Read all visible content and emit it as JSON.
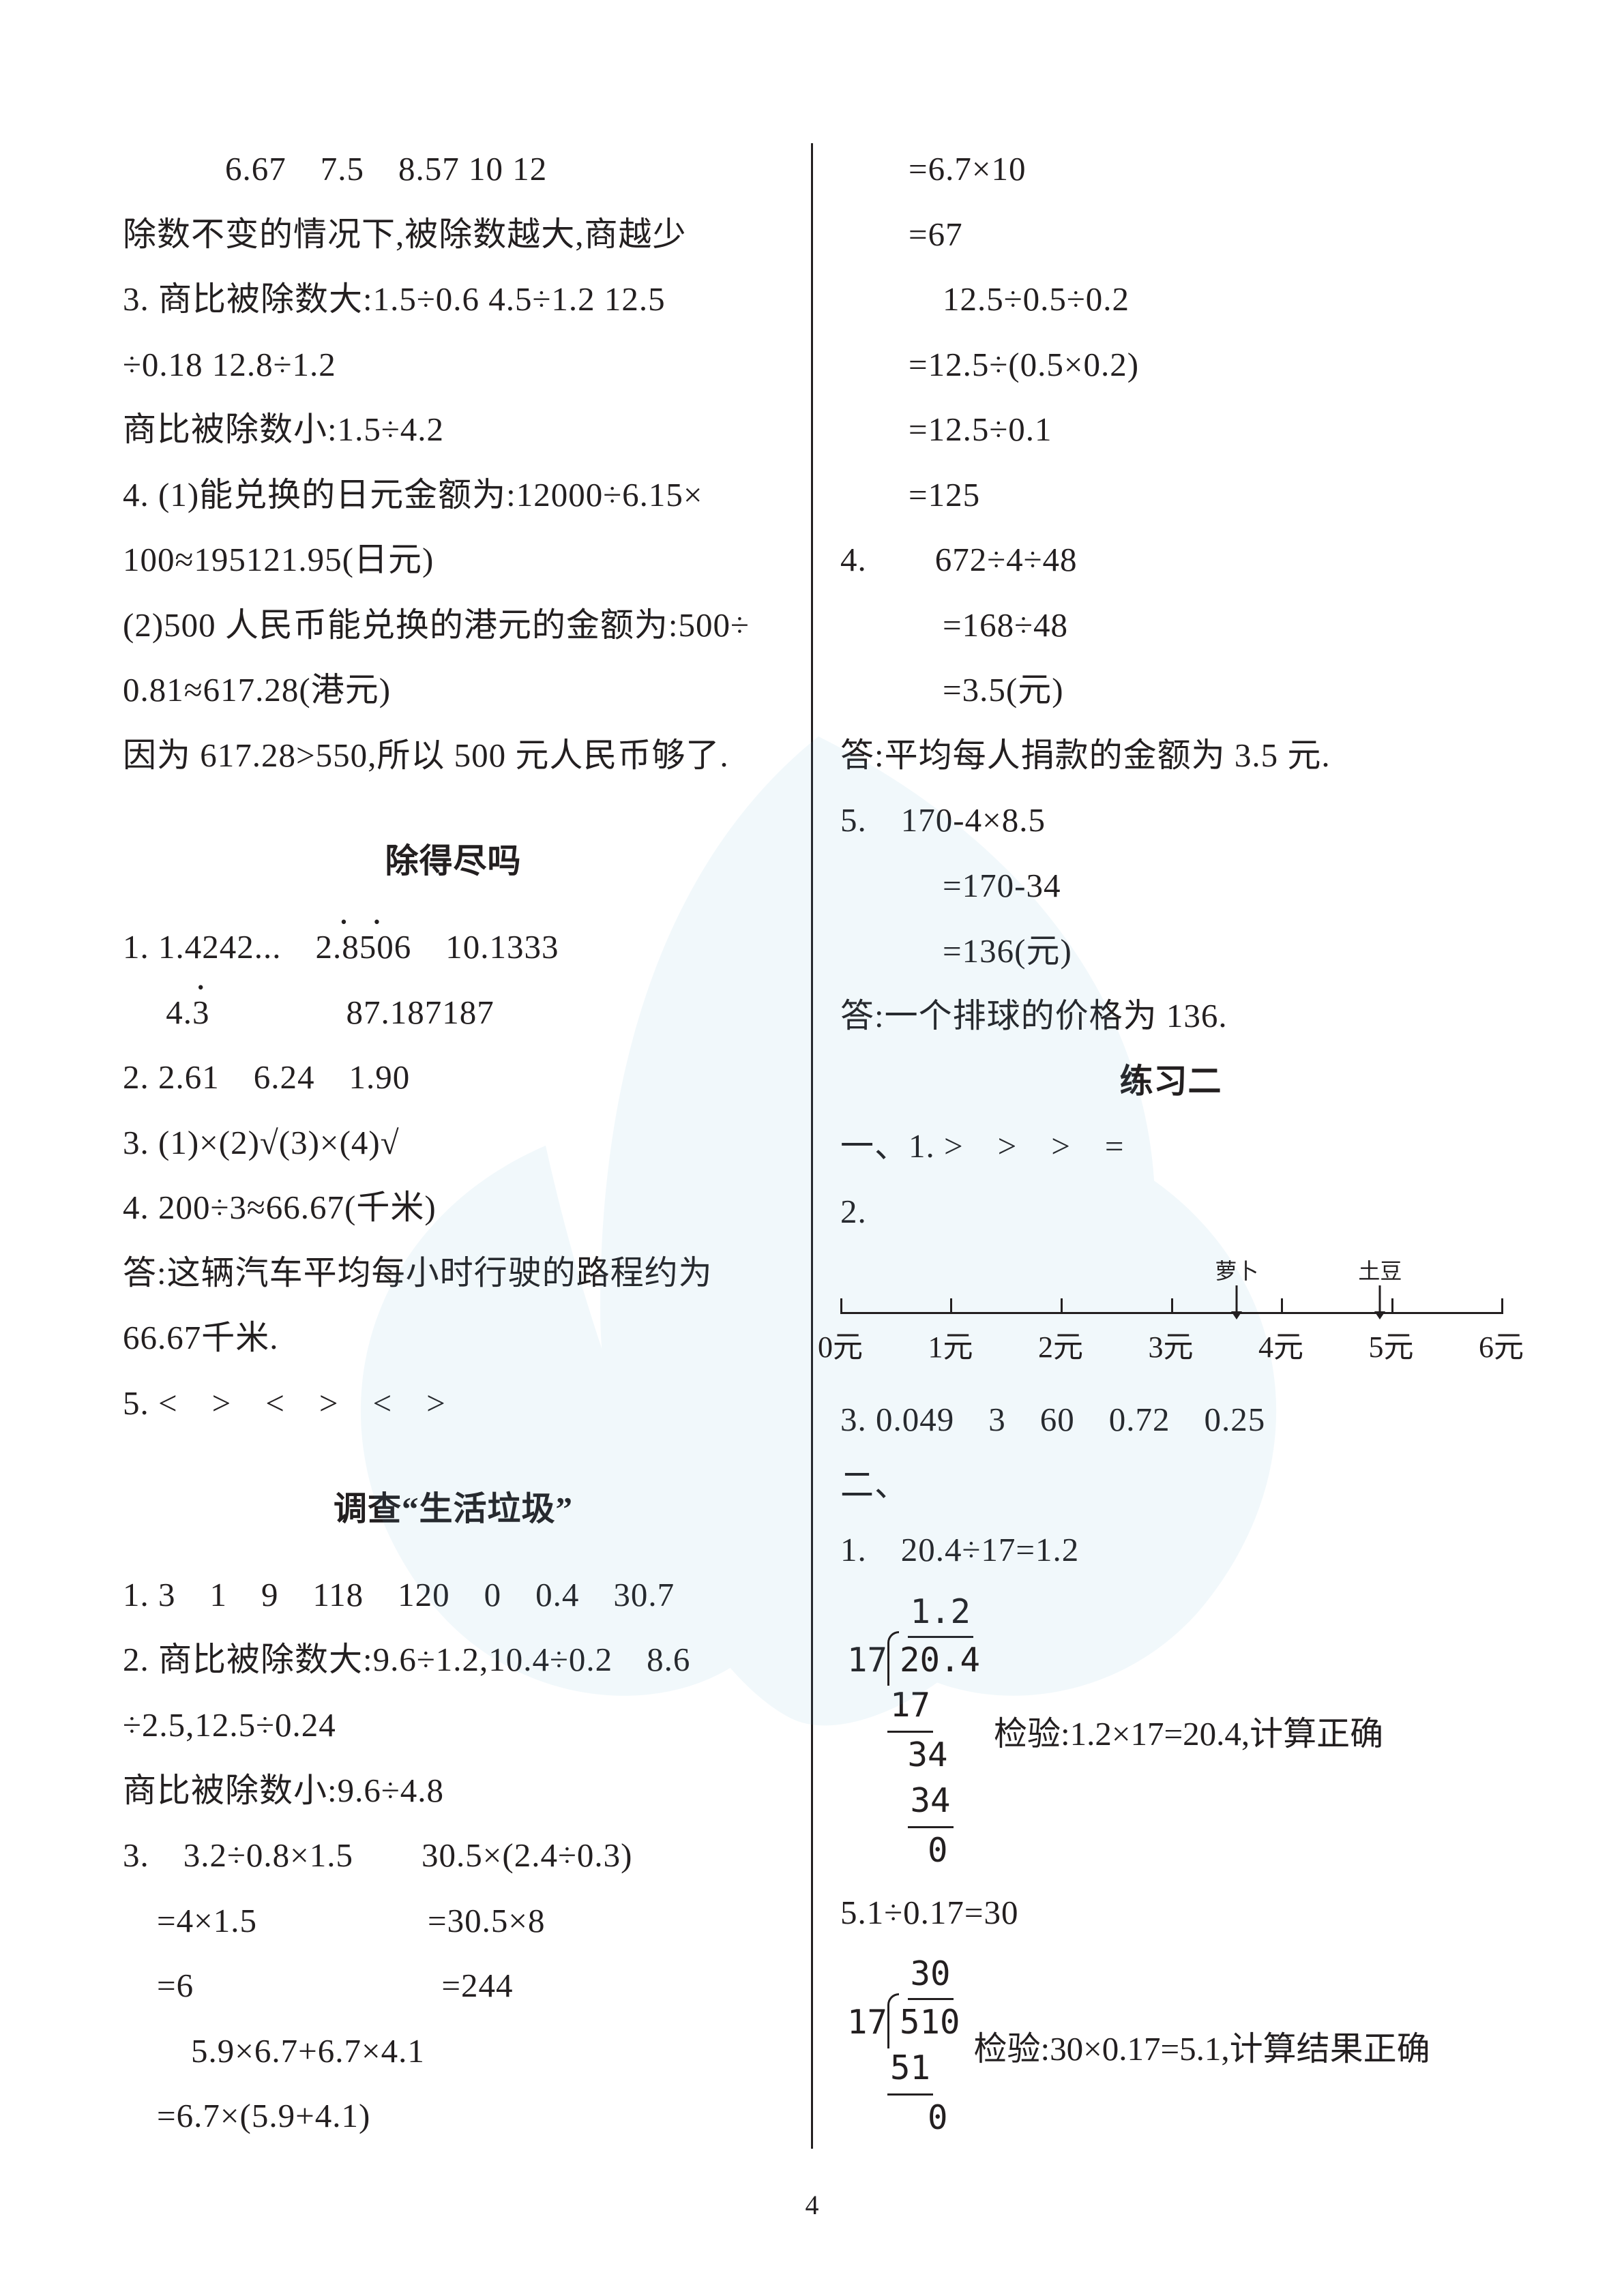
{
  "page_number": "4",
  "left": {
    "top_lines": [
      "　　6.67　7.5　8.57 10 12",
      "除数不变的情况下,被除数越大,商越少",
      "3. 商比被除数大:1.5÷0.6 4.5÷1.2 12.5",
      "÷0.18 12.8÷1.2",
      "商比被除数小:1.5÷4.2",
      "4. (1)能兑换的日元金额为:12000÷6.15×",
      "100≈195121.95(日元)",
      "(2)500 人民币能兑换的港元的金额为:500÷",
      "0.81≈617.28(港元)",
      "因为 617.28>550,所以 500 元人民币够了."
    ],
    "sec1_title": "除得尽吗",
    "sec1_lines_a": [
      "1. 1.4242...　"
    ],
    "sec1_rep1": "2.8506",
    "sec1_lines_b": [
      "　10.1333"
    ],
    "sec1_rep2_prefix": "　 4.",
    "sec1_rep2_digit": "3",
    "sec1_lines_c": [
      "　　　　87.187187"
    ],
    "sec1_rest": [
      "2. 2.61　6.24　1.90",
      "3. (1)×(2)√(3)×(4)√",
      "4. 200÷3≈66.67(千米)",
      "答:这辆汽车平均每小时行驶的路程约为",
      "66.67千米.",
      "5. <　>　<　>　<　>"
    ],
    "sec2_title": "调查“生活垃圾”",
    "sec2_lines": [
      "1. 3　1　9　118　120　0　0.4　30.7",
      "2. 商比被除数大:9.6÷1.2,10.4÷0.2　8.6",
      "÷2.5,12.5÷0.24",
      "商比被除数小:9.6÷4.8",
      "3.　3.2÷0.8×1.5　　30.5×(2.4÷0.3)",
      "　=4×1.5　　　　　=30.5×8",
      "　=6　　　　　　　 =244",
      "　　5.9×6.7+6.7×4.1",
      "　=6.7×(5.9+4.1)"
    ]
  },
  "right": {
    "top_lines": [
      "　=6.7×10",
      "　=67",
      "　　12.5÷0.5÷0.2",
      "　=12.5÷(0.5×0.2)",
      "　=12.5÷0.1",
      "　=125",
      "4.　　672÷4÷48",
      "　　=168÷48",
      "　　=3.5(元)",
      "答:平均每人捐款的金额为 3.5 元.",
      "5.　170-4×8.5",
      "　　=170-34",
      "　　=136(元)",
      "答:一个排球的价格为 136."
    ],
    "ex2_title": "练习二",
    "ex2_line1": "一、1. >　>　>　=",
    "ex2_line2": "2.",
    "numberline": {
      "ticks": [
        0,
        1,
        2,
        3,
        4,
        5,
        6
      ],
      "labels": [
        "0元",
        "1元",
        "2元",
        "3元",
        "4元",
        "5元",
        "6元"
      ],
      "marker_positions": [
        3.6,
        4.9
      ],
      "marker_labels": [
        "萝卜",
        "土豆"
      ]
    },
    "ex2_line3": "3. 0.049　3　60　0.72　0.25",
    "ex2_line4": "二、",
    "ex2_line5": "1.　20.4÷17=1.2",
    "ld1": {
      "divisor": "17",
      "quotient": "1.2",
      "dividend": "20.4",
      "steps": [
        "17",
        "34",
        "34",
        "0"
      ],
      "check": "检验:1.2×17=20.4,计算正确"
    },
    "ex2_line6": "5.1÷0.17=30",
    "ld2": {
      "divisor": "17",
      "quotient": "30",
      "dividend": "510",
      "steps": [
        "51",
        "0"
      ],
      "check": "检验:30×0.17=5.1,计算结果正确"
    }
  }
}
